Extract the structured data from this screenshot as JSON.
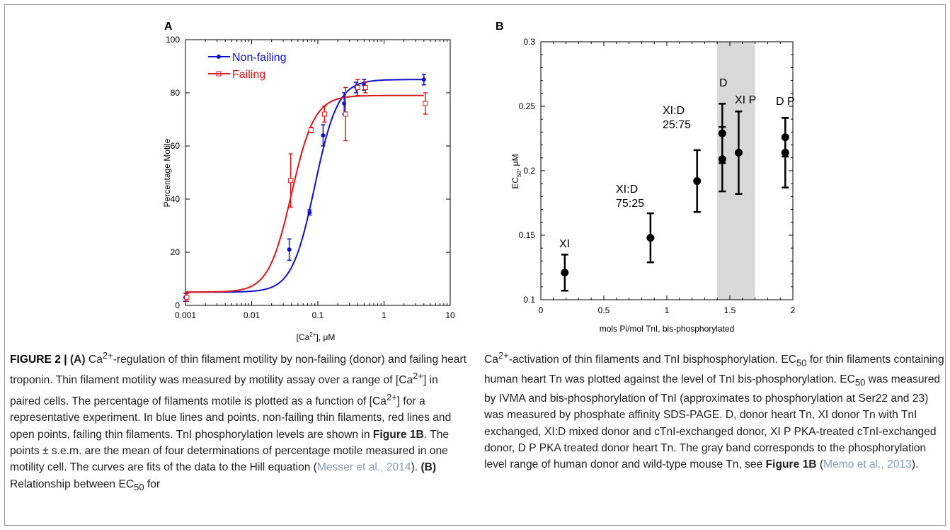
{
  "panel_a": {
    "label": "A",
    "xlabel_base": "[Ca",
    "xlabel_sup": "2+",
    "xlabel_tail": "],  μM",
    "ylabel": "Percentage Motile",
    "colors": {
      "nonfailing": "#1010c8",
      "failing": "#d81818"
    }
  },
  "panel_b": {
    "label": "B",
    "ylabel_base": "EC",
    "ylabel_sub": "50",
    "ylabel_tail": ", μM",
    "xlabel": "mols Pi/mol TnI, bis-phosphorylated",
    "band_color": "#d8d8d8",
    "annotations": {
      "xi": "XI",
      "xid75_l1": "XI:D",
      "xid75_l2": "75:25",
      "xid25_l1": "XI:D",
      "xid25_l2": "25:75",
      "d": "D",
      "xip": "XI P",
      "dp": "D P"
    }
  },
  "chart_data": [
    {
      "type": "scatter",
      "x_scale": "log",
      "xlim": [
        0.001,
        10
      ],
      "ylim": [
        0,
        100
      ],
      "xticks": [
        "0.001",
        "0.01",
        "0.1",
        "1",
        "10"
      ],
      "yticks": [
        "0",
        "20",
        "40",
        "60",
        "80",
        "100"
      ],
      "legend": "top-left",
      "series": [
        {
          "name": "Non-failing",
          "marker": "filled circle",
          "points": [
            {
              "x": 0.001,
              "y": 3,
              "err": 1.5
            },
            {
              "x": 0.037,
              "y": 21,
              "err": 4
            },
            {
              "x": 0.075,
              "y": 35,
              "err": 1
            },
            {
              "x": 0.12,
              "y": 64,
              "err": 4
            },
            {
              "x": 0.25,
              "y": 76,
              "err": 4
            },
            {
              "x": 0.38,
              "y": 82,
              "err": 2
            },
            {
              "x": 0.5,
              "y": 83,
              "err": 2
            },
            {
              "x": 4,
              "y": 85,
              "err": 2
            }
          ],
          "fit": {
            "bottom": 5,
            "top": 85,
            "ec50": 0.09,
            "hill": 2.5
          }
        },
        {
          "name": "Failing",
          "marker": "open square",
          "points": [
            {
              "x": 0.001,
              "y": 3,
              "err": 1.5
            },
            {
              "x": 0.037,
              "y": 47,
              "err": 10
            },
            {
              "x": 0.075,
              "y": 66,
              "err": 1
            },
            {
              "x": 0.12,
              "y": 72,
              "err": 3
            },
            {
              "x": 0.25,
              "y": 72,
              "err": 10
            },
            {
              "x": 0.38,
              "y": 82,
              "err": 3
            },
            {
              "x": 0.5,
              "y": 82,
              "err": 2
            },
            {
              "x": 4,
              "y": 76,
              "err": 4
            }
          ],
          "fit": {
            "bottom": 5,
            "top": 79,
            "ec50": 0.04,
            "hill": 2.5
          }
        }
      ]
    },
    {
      "type": "scatter",
      "xlim": [
        0,
        2
      ],
      "ylim": [
        0.1,
        0.3
      ],
      "xticks": [
        "0",
        "0.5",
        "1",
        "1.5",
        "2"
      ],
      "yticks": [
        "0.1",
        "0.15",
        "0.2",
        "0.25",
        "0.3"
      ],
      "shaded_band_x": [
        1.4,
        1.7
      ],
      "points": [
        {
          "x": 0.19,
          "y": 0.121,
          "err": 0.014
        },
        {
          "x": 0.87,
          "y": 0.148,
          "err": 0.019
        },
        {
          "x": 1.24,
          "y": 0.192,
          "err": 0.024
        },
        {
          "x": 1.44,
          "y": 0.229,
          "err": 0.023
        },
        {
          "x": 1.44,
          "y": 0.209,
          "err": 0.025
        },
        {
          "x": 1.57,
          "y": 0.214,
          "err": 0.032
        },
        {
          "x": 1.94,
          "y": 0.226,
          "err": 0.015
        },
        {
          "x": 1.94,
          "y": 0.214,
          "err": 0.027
        }
      ]
    }
  ],
  "caption_left": {
    "fig_label": "FIGURE 2 | ",
    "a_label": "(A)",
    "t1a": " Ca",
    "t1sup": "2+",
    "t1b": "-regulation of thin filament motility by non-failing (donor) and failing heart troponin. Thin filament motility was measured by motility assay over a range of [Ca",
    "t2sup": "2+",
    "t2b": "] in paired cells. The percentage of filaments motile is plotted as a function of [Ca",
    "t3sup": "2+",
    "t3b": "] for a representative experiment. In blue lines and points, non-failing thin filaments, red lines and open points, failing thin filaments. TnI phosphorylation levels are shown in ",
    "fig1b": "Figure 1B",
    "t4": ". The points ± s.e.m. are the mean of four determinations of percentage motile measured in one motility cell. The curves are fits of the data to the Hill equation (",
    "ref1": "Messer et al., 2014",
    "t5": "). ",
    "b_label": "(B)",
    "t6": " Relationship between EC",
    "t6sub": "50",
    "t7": " for"
  },
  "caption_right": {
    "r1a": "Ca",
    "r1sup": "2+",
    "r1b": "-activation of thin filaments and TnI bisphosphorylation. EC",
    "r1sub": "50",
    "r2": " for thin filaments containing human heart Tn was plotted against the level of TnI bis-phosphorylation. EC",
    "r2sub": "50",
    "r3": " was measured by IVMA and bis-phosphorylation of TnI (approximates to phosphorylation at Ser22 and 23) was measured by phosphate affinity SDS-PAGE. D, donor heart Tn, XI donor Tn with TnI exchanged, XI:D mixed donor and cTnI-exchanged donor, XI P PKA-treated cTnI-exchanged donor, D P PKA treated donor heart Tn. The gray band corresponds to the phosphorylation level range of human donor and wild-type mouse Tn, see ",
    "fig1b": "Figure 1B",
    "r4": " (",
    "ref2": "Memo et al., 2013",
    "r5": ")."
  }
}
